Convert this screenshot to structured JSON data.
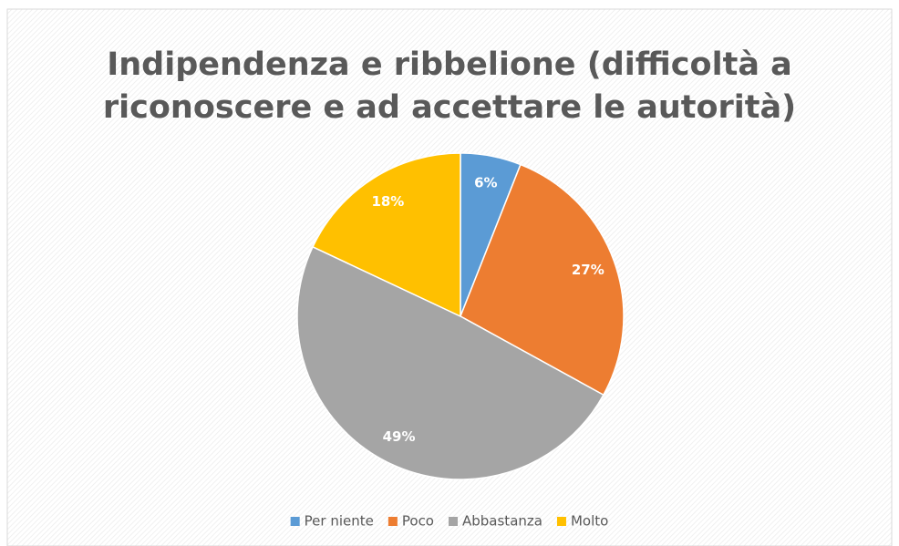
{
  "chart_data": {
    "type": "pie",
    "title": [
      "Indipendenza e ribbelione (difficoltà a",
      "riconoscere e ad accettare le autorità)"
    ],
    "categories": [
      "Per niente",
      "Poco",
      "Abbastanza",
      "Molto"
    ],
    "values": [
      6,
      27,
      49,
      18
    ],
    "value_labels": [
      "6%",
      "27%",
      "49%",
      "18%"
    ],
    "colors": [
      "#5b9bd5",
      "#ed7d31",
      "#a5a5a5",
      "#ffc000"
    ],
    "legend": "bottom"
  }
}
